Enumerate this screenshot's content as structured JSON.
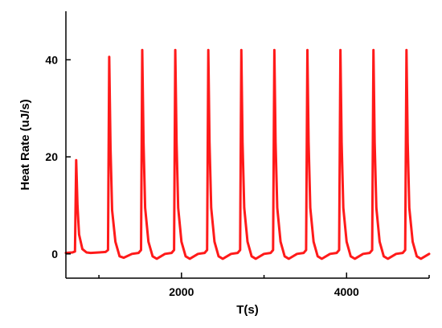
{
  "chart_data": {
    "type": "line",
    "title": "",
    "xlabel": "T(s)",
    "ylabel": "Heat Rate (uJ/s)",
    "xlim": [
      600,
      5000
    ],
    "ylim": [
      -5,
      50
    ],
    "x_ticks": [
      2000,
      4000
    ],
    "x_tick_labels": [
      "2000",
      "4000"
    ],
    "x_minor_ticks": [
      1000,
      3000,
      5000
    ],
    "y_ticks": [
      0,
      20,
      40
    ],
    "y_tick_labels": [
      "0",
      "20",
      "40"
    ],
    "grid": false,
    "legend": "none",
    "color": "#ff1a1a",
    "baseline": 0.2,
    "peaks": [
      {
        "x": 725,
        "y": 19.3
      },
      {
        "x": 1125,
        "y": 40.6
      },
      {
        "x": 1525,
        "y": 42.0
      },
      {
        "x": 1925,
        "y": 42.0
      },
      {
        "x": 2325,
        "y": 42.0
      },
      {
        "x": 2725,
        "y": 42.0
      },
      {
        "x": 3125,
        "y": 42.0
      },
      {
        "x": 3525,
        "y": 42.0
      },
      {
        "x": 3925,
        "y": 42.0
      },
      {
        "x": 4325,
        "y": 42.0
      },
      {
        "x": 4725,
        "y": 42.0
      }
    ],
    "series": [
      {
        "x": [
          600,
          680,
          710,
          725,
          740,
          760,
          800,
          850,
          900,
          1000,
          1080,
          1110,
          1125,
          1140,
          1160,
          1200,
          1250,
          1300,
          1400,
          1480,
          1510,
          1525,
          1540,
          1560,
          1600,
          1650,
          1700,
          1800,
          1880,
          1910,
          1925,
          1940,
          1960,
          2000,
          2050,
          2100,
          2200,
          2280,
          2310,
          2325,
          2340,
          2360,
          2400,
          2450,
          2500,
          2600,
          2680,
          2710,
          2725,
          2740,
          2760,
          2800,
          2850,
          2900,
          3000,
          3080,
          3110,
          3125,
          3140,
          3160,
          3200,
          3250,
          3300,
          3400,
          3480,
          3510,
          3525,
          3540,
          3560,
          3600,
          3650,
          3700,
          3800,
          3880,
          3910,
          3925,
          3940,
          3960,
          4000,
          4050,
          4100,
          4200,
          4280,
          4310,
          4325,
          4340,
          4360,
          4400,
          4450,
          4500,
          4600,
          4680,
          4710,
          4725,
          4740,
          4760,
          4800,
          4850,
          4900,
          5000
        ],
        "y": [
          0.2,
          0.3,
          0.5,
          19.3,
          10.0,
          4.0,
          1.0,
          0.3,
          0.2,
          0.3,
          0.4,
          0.8,
          40.6,
          22.0,
          9.0,
          2.5,
          -0.5,
          -0.8,
          0.0,
          0.2,
          0.8,
          42.0,
          23.0,
          9.5,
          2.5,
          -0.5,
          -1.0,
          0.0,
          0.2,
          0.8,
          42.0,
          23.0,
          9.5,
          2.5,
          -0.5,
          -1.0,
          0.0,
          0.2,
          0.8,
          42.0,
          23.0,
          9.5,
          2.5,
          -0.5,
          -1.0,
          0.0,
          0.2,
          0.8,
          42.0,
          23.0,
          9.5,
          2.5,
          -0.5,
          -1.0,
          0.0,
          0.2,
          0.8,
          42.0,
          23.0,
          9.5,
          2.5,
          -0.5,
          -1.0,
          0.0,
          0.2,
          0.8,
          42.0,
          23.0,
          9.5,
          2.5,
          -0.5,
          -1.0,
          0.0,
          0.2,
          0.8,
          42.0,
          23.0,
          9.5,
          2.5,
          -0.5,
          -1.0,
          0.0,
          0.2,
          0.8,
          42.0,
          23.0,
          9.5,
          2.5,
          -0.5,
          -1.0,
          0.0,
          0.2,
          0.8,
          42.0,
          23.0,
          9.5,
          2.5,
          -0.5,
          -1.0,
          0.0
        ]
      }
    ]
  }
}
